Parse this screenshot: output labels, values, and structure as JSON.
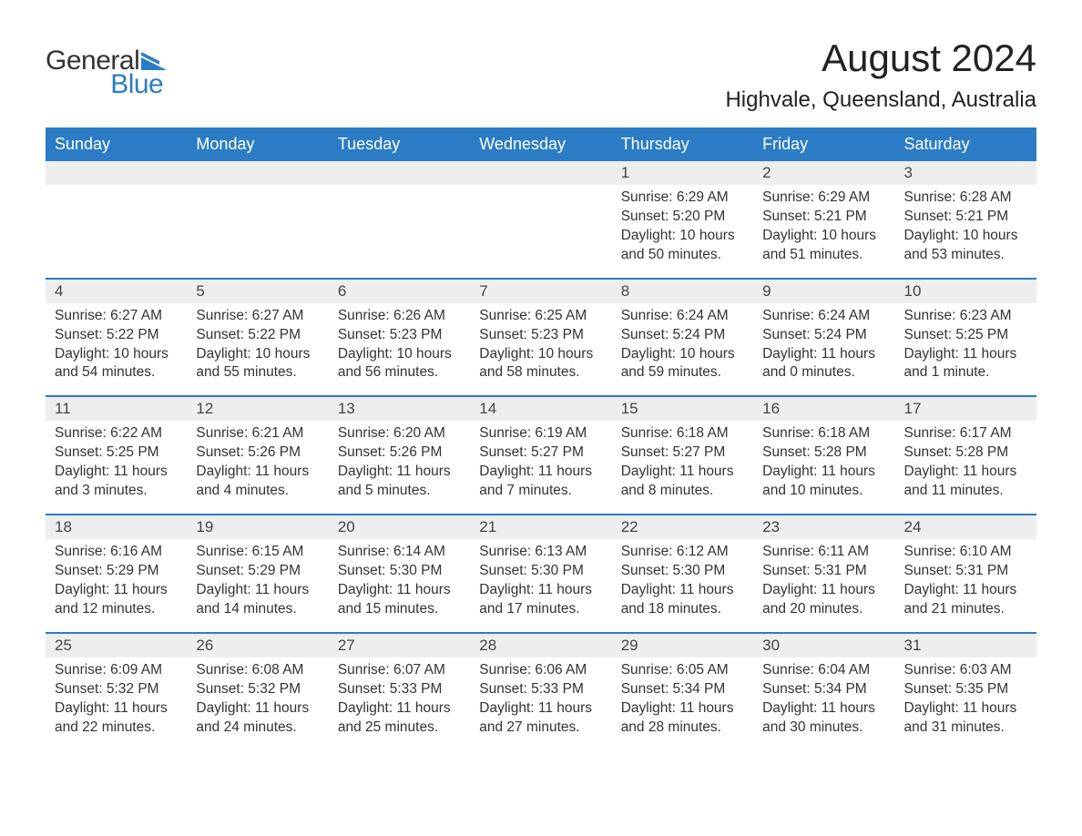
{
  "logo": {
    "text1": "General",
    "text2": "Blue",
    "flag_color": "#2b7cc4"
  },
  "title": "August 2024",
  "location": "Highvale, Queensland, Australia",
  "colors": {
    "header_bg": "#2b7cc4",
    "header_text": "#ffffff",
    "daynum_bg": "#eeeeee",
    "body_text": "#333333",
    "border": "#2b7cc4"
  },
  "day_headers": [
    "Sunday",
    "Monday",
    "Tuesday",
    "Wednesday",
    "Thursday",
    "Friday",
    "Saturday"
  ],
  "weeks": [
    [
      {
        "day": "",
        "sunrise": "",
        "sunset": "",
        "daylight": ""
      },
      {
        "day": "",
        "sunrise": "",
        "sunset": "",
        "daylight": ""
      },
      {
        "day": "",
        "sunrise": "",
        "sunset": "",
        "daylight": ""
      },
      {
        "day": "",
        "sunrise": "",
        "sunset": "",
        "daylight": ""
      },
      {
        "day": "1",
        "sunrise": "Sunrise: 6:29 AM",
        "sunset": "Sunset: 5:20 PM",
        "daylight": "Daylight: 10 hours and 50 minutes."
      },
      {
        "day": "2",
        "sunrise": "Sunrise: 6:29 AM",
        "sunset": "Sunset: 5:21 PM",
        "daylight": "Daylight: 10 hours and 51 minutes."
      },
      {
        "day": "3",
        "sunrise": "Sunrise: 6:28 AM",
        "sunset": "Sunset: 5:21 PM",
        "daylight": "Daylight: 10 hours and 53 minutes."
      }
    ],
    [
      {
        "day": "4",
        "sunrise": "Sunrise: 6:27 AM",
        "sunset": "Sunset: 5:22 PM",
        "daylight": "Daylight: 10 hours and 54 minutes."
      },
      {
        "day": "5",
        "sunrise": "Sunrise: 6:27 AM",
        "sunset": "Sunset: 5:22 PM",
        "daylight": "Daylight: 10 hours and 55 minutes."
      },
      {
        "day": "6",
        "sunrise": "Sunrise: 6:26 AM",
        "sunset": "Sunset: 5:23 PM",
        "daylight": "Daylight: 10 hours and 56 minutes."
      },
      {
        "day": "7",
        "sunrise": "Sunrise: 6:25 AM",
        "sunset": "Sunset: 5:23 PM",
        "daylight": "Daylight: 10 hours and 58 minutes."
      },
      {
        "day": "8",
        "sunrise": "Sunrise: 6:24 AM",
        "sunset": "Sunset: 5:24 PM",
        "daylight": "Daylight: 10 hours and 59 minutes."
      },
      {
        "day": "9",
        "sunrise": "Sunrise: 6:24 AM",
        "sunset": "Sunset: 5:24 PM",
        "daylight": "Daylight: 11 hours and 0 minutes."
      },
      {
        "day": "10",
        "sunrise": "Sunrise: 6:23 AM",
        "sunset": "Sunset: 5:25 PM",
        "daylight": "Daylight: 11 hours and 1 minute."
      }
    ],
    [
      {
        "day": "11",
        "sunrise": "Sunrise: 6:22 AM",
        "sunset": "Sunset: 5:25 PM",
        "daylight": "Daylight: 11 hours and 3 minutes."
      },
      {
        "day": "12",
        "sunrise": "Sunrise: 6:21 AM",
        "sunset": "Sunset: 5:26 PM",
        "daylight": "Daylight: 11 hours and 4 minutes."
      },
      {
        "day": "13",
        "sunrise": "Sunrise: 6:20 AM",
        "sunset": "Sunset: 5:26 PM",
        "daylight": "Daylight: 11 hours and 5 minutes."
      },
      {
        "day": "14",
        "sunrise": "Sunrise: 6:19 AM",
        "sunset": "Sunset: 5:27 PM",
        "daylight": "Daylight: 11 hours and 7 minutes."
      },
      {
        "day": "15",
        "sunrise": "Sunrise: 6:18 AM",
        "sunset": "Sunset: 5:27 PM",
        "daylight": "Daylight: 11 hours and 8 minutes."
      },
      {
        "day": "16",
        "sunrise": "Sunrise: 6:18 AM",
        "sunset": "Sunset: 5:28 PM",
        "daylight": "Daylight: 11 hours and 10 minutes."
      },
      {
        "day": "17",
        "sunrise": "Sunrise: 6:17 AM",
        "sunset": "Sunset: 5:28 PM",
        "daylight": "Daylight: 11 hours and 11 minutes."
      }
    ],
    [
      {
        "day": "18",
        "sunrise": "Sunrise: 6:16 AM",
        "sunset": "Sunset: 5:29 PM",
        "daylight": "Daylight: 11 hours and 12 minutes."
      },
      {
        "day": "19",
        "sunrise": "Sunrise: 6:15 AM",
        "sunset": "Sunset: 5:29 PM",
        "daylight": "Daylight: 11 hours and 14 minutes."
      },
      {
        "day": "20",
        "sunrise": "Sunrise: 6:14 AM",
        "sunset": "Sunset: 5:30 PM",
        "daylight": "Daylight: 11 hours and 15 minutes."
      },
      {
        "day": "21",
        "sunrise": "Sunrise: 6:13 AM",
        "sunset": "Sunset: 5:30 PM",
        "daylight": "Daylight: 11 hours and 17 minutes."
      },
      {
        "day": "22",
        "sunrise": "Sunrise: 6:12 AM",
        "sunset": "Sunset: 5:30 PM",
        "daylight": "Daylight: 11 hours and 18 minutes."
      },
      {
        "day": "23",
        "sunrise": "Sunrise: 6:11 AM",
        "sunset": "Sunset: 5:31 PM",
        "daylight": "Daylight: 11 hours and 20 minutes."
      },
      {
        "day": "24",
        "sunrise": "Sunrise: 6:10 AM",
        "sunset": "Sunset: 5:31 PM",
        "daylight": "Daylight: 11 hours and 21 minutes."
      }
    ],
    [
      {
        "day": "25",
        "sunrise": "Sunrise: 6:09 AM",
        "sunset": "Sunset: 5:32 PM",
        "daylight": "Daylight: 11 hours and 22 minutes."
      },
      {
        "day": "26",
        "sunrise": "Sunrise: 6:08 AM",
        "sunset": "Sunset: 5:32 PM",
        "daylight": "Daylight: 11 hours and 24 minutes."
      },
      {
        "day": "27",
        "sunrise": "Sunrise: 6:07 AM",
        "sunset": "Sunset: 5:33 PM",
        "daylight": "Daylight: 11 hours and 25 minutes."
      },
      {
        "day": "28",
        "sunrise": "Sunrise: 6:06 AM",
        "sunset": "Sunset: 5:33 PM",
        "daylight": "Daylight: 11 hours and 27 minutes."
      },
      {
        "day": "29",
        "sunrise": "Sunrise: 6:05 AM",
        "sunset": "Sunset: 5:34 PM",
        "daylight": "Daylight: 11 hours and 28 minutes."
      },
      {
        "day": "30",
        "sunrise": "Sunrise: 6:04 AM",
        "sunset": "Sunset: 5:34 PM",
        "daylight": "Daylight: 11 hours and 30 minutes."
      },
      {
        "day": "31",
        "sunrise": "Sunrise: 6:03 AM",
        "sunset": "Sunset: 5:35 PM",
        "daylight": "Daylight: 11 hours and 31 minutes."
      }
    ]
  ]
}
